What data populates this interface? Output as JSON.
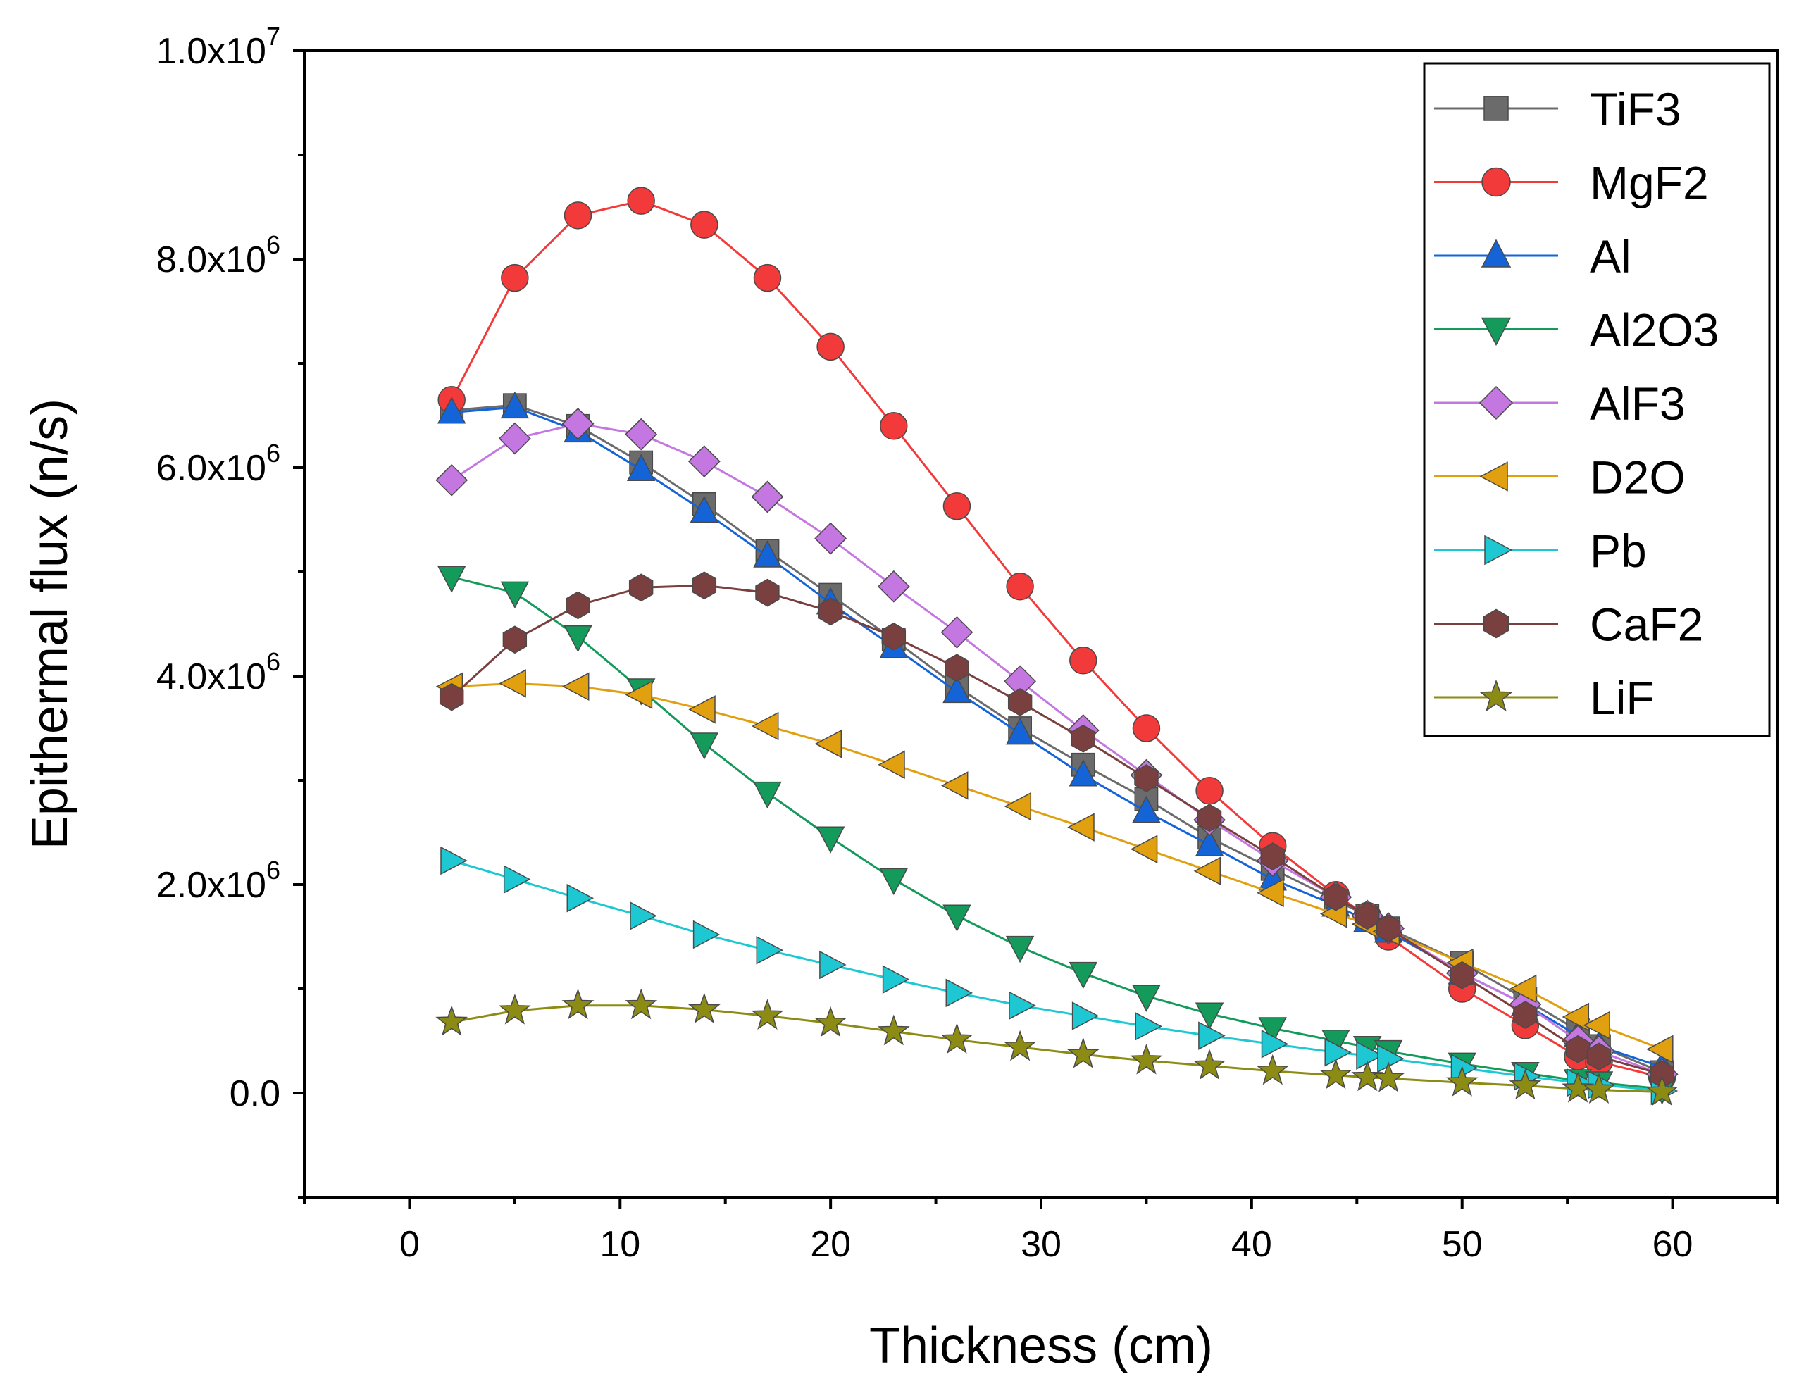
{
  "chart_data": {
    "type": "line",
    "title": "",
    "xlabel": "Thickness (cm)",
    "ylabel": "Epithermal flux (n/s)",
    "xlim": [
      -5,
      65
    ],
    "ylim": [
      -1000000,
      10000000
    ],
    "xticks": [
      0,
      10,
      20,
      30,
      40,
      50,
      60
    ],
    "xtick_labels": [
      "0",
      "10",
      "20",
      "30",
      "40",
      "50",
      "60"
    ],
    "yticks": [
      0,
      2000000,
      4000000,
      6000000,
      8000000,
      10000000
    ],
    "ytick_labels": [
      {
        "mantissa": "0.0",
        "exp": ""
      },
      {
        "mantissa": "2.0x10",
        "exp": "6"
      },
      {
        "mantissa": "4.0x10",
        "exp": "6"
      },
      {
        "mantissa": "6.0x10",
        "exp": "6"
      },
      {
        "mantissa": "8.0x10",
        "exp": "6"
      },
      {
        "mantissa": "1.0x10",
        "exp": "7"
      }
    ],
    "grid": false,
    "legend_position": "top-right",
    "x": [
      2,
      5,
      8,
      11,
      14,
      17,
      20,
      23,
      26,
      29,
      32,
      35,
      38,
      41,
      44,
      45.5,
      46.5,
      50,
      53,
      55.5,
      56.5,
      59.5
    ],
    "series": [
      {
        "name": "TiF3",
        "color": "#6b6b6b",
        "marker": "square",
        "values": [
          6550000,
          6600000,
          6400000,
          6050000,
          5650000,
          5200000,
          4780000,
          4350000,
          3900000,
          3500000,
          3150000,
          2820000,
          2450000,
          2150000,
          1850000,
          1700000,
          1580000,
          1250000,
          900000,
          600000,
          450000,
          200000
        ]
      },
      {
        "name": "MgF2",
        "color": "#f23a3a",
        "marker": "circle",
        "values": [
          6650000,
          7820000,
          8420000,
          8560000,
          8330000,
          7820000,
          7160000,
          6400000,
          5630000,
          4860000,
          4150000,
          3500000,
          2900000,
          2370000,
          1900000,
          1700000,
          1500000,
          1000000,
          650000,
          350000,
          300000,
          150000
        ]
      },
      {
        "name": "Al",
        "color": "#1464d8",
        "marker": "triangle-up",
        "values": [
          6530000,
          6580000,
          6350000,
          5980000,
          5580000,
          5150000,
          4700000,
          4280000,
          3850000,
          3450000,
          3050000,
          2700000,
          2380000,
          2050000,
          1800000,
          1650000,
          1550000,
          1150000,
          850000,
          550000,
          450000,
          250000
        ]
      },
      {
        "name": "Al2O3",
        "color": "#149a5a",
        "marker": "triangle-down",
        "values": [
          4950000,
          4800000,
          4380000,
          3870000,
          3350000,
          2880000,
          2450000,
          2050000,
          1700000,
          1400000,
          1150000,
          930000,
          760000,
          620000,
          500000,
          440000,
          400000,
          280000,
          190000,
          120000,
          100000,
          40000
        ]
      },
      {
        "name": "AlF3",
        "color": "#c477e0",
        "marker": "diamond",
        "values": [
          5880000,
          6280000,
          6420000,
          6320000,
          6060000,
          5720000,
          5320000,
          4860000,
          4420000,
          3950000,
          3480000,
          3050000,
          2620000,
          2230000,
          1880000,
          1700000,
          1580000,
          1150000,
          850000,
          500000,
          400000,
          180000
        ]
      },
      {
        "name": "D2O",
        "color": "#e0a010",
        "marker": "triangle-left",
        "values": [
          3900000,
          3930000,
          3900000,
          3820000,
          3680000,
          3520000,
          3350000,
          3150000,
          2950000,
          2750000,
          2550000,
          2340000,
          2130000,
          1920000,
          1720000,
          1620000,
          1550000,
          1250000,
          1000000,
          730000,
          650000,
          420000
        ]
      },
      {
        "name": "Pb",
        "color": "#1ec8d2",
        "marker": "triangle-right",
        "values": [
          2230000,
          2050000,
          1870000,
          1700000,
          1520000,
          1370000,
          1230000,
          1090000,
          960000,
          840000,
          740000,
          640000,
          550000,
          470000,
          390000,
          360000,
          330000,
          240000,
          160000,
          100000,
          80000,
          20000
        ]
      },
      {
        "name": "CaF2",
        "color": "#7a4040",
        "marker": "hexagon",
        "values": [
          3800000,
          4350000,
          4680000,
          4850000,
          4870000,
          4800000,
          4620000,
          4380000,
          4080000,
          3750000,
          3400000,
          3020000,
          2640000,
          2270000,
          1880000,
          1700000,
          1580000,
          1130000,
          750000,
          420000,
          350000,
          180000
        ]
      },
      {
        "name": "LiF",
        "color": "#8c8c14",
        "marker": "star",
        "values": [
          680000,
          790000,
          840000,
          840000,
          800000,
          740000,
          670000,
          590000,
          510000,
          440000,
          370000,
          310000,
          260000,
          210000,
          170000,
          150000,
          140000,
          100000,
          70000,
          40000,
          30000,
          10000
        ]
      }
    ]
  }
}
